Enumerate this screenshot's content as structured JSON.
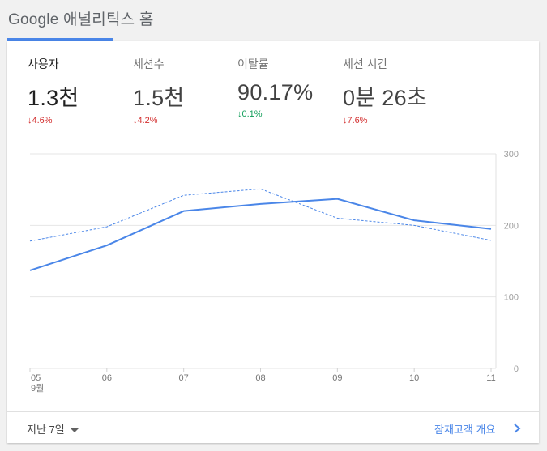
{
  "page": {
    "title": "Google 애널리틱스 홈"
  },
  "metrics": [
    {
      "label": "사용자",
      "value": "1.3천",
      "arrow": "↓",
      "change": "4.6%",
      "trend": "down"
    },
    {
      "label": "세션수",
      "value": "1.5천",
      "arrow": "↓",
      "change": "4.2%",
      "trend": "down"
    },
    {
      "label": "이탈률",
      "value": "90.17%",
      "arrow": "↓",
      "change": "0.1%",
      "trend": "good"
    },
    {
      "label": "세션 시간",
      "value": "0분 26초",
      "arrow": "↓",
      "change": "7.6%",
      "trend": "down"
    }
  ],
  "chart_data": {
    "type": "line",
    "x": [
      "05",
      "06",
      "07",
      "08",
      "09",
      "10",
      "11"
    ],
    "x_sublabel": "9월",
    "series": [
      {
        "style": "solid",
        "color": "#4a86e8",
        "values": [
          137,
          172,
          220,
          230,
          237,
          207,
          195
        ]
      },
      {
        "style": "dashed",
        "color": "#4a86e8",
        "values": [
          178,
          198,
          242,
          251,
          210,
          200,
          179
        ]
      }
    ],
    "ylim": [
      0,
      300
    ],
    "yticks": [
      0,
      100,
      200,
      300
    ],
    "ytick_labels": [
      "0",
      "100",
      "200",
      "300"
    ],
    "grid": true,
    "axis_position": "right"
  },
  "footer": {
    "range_label": "지난 7일",
    "link_label": "잠재고객 개요"
  },
  "colors": {
    "accent": "#4a86e8",
    "negative": "#d32f2f",
    "positive": "#0f9d58"
  }
}
